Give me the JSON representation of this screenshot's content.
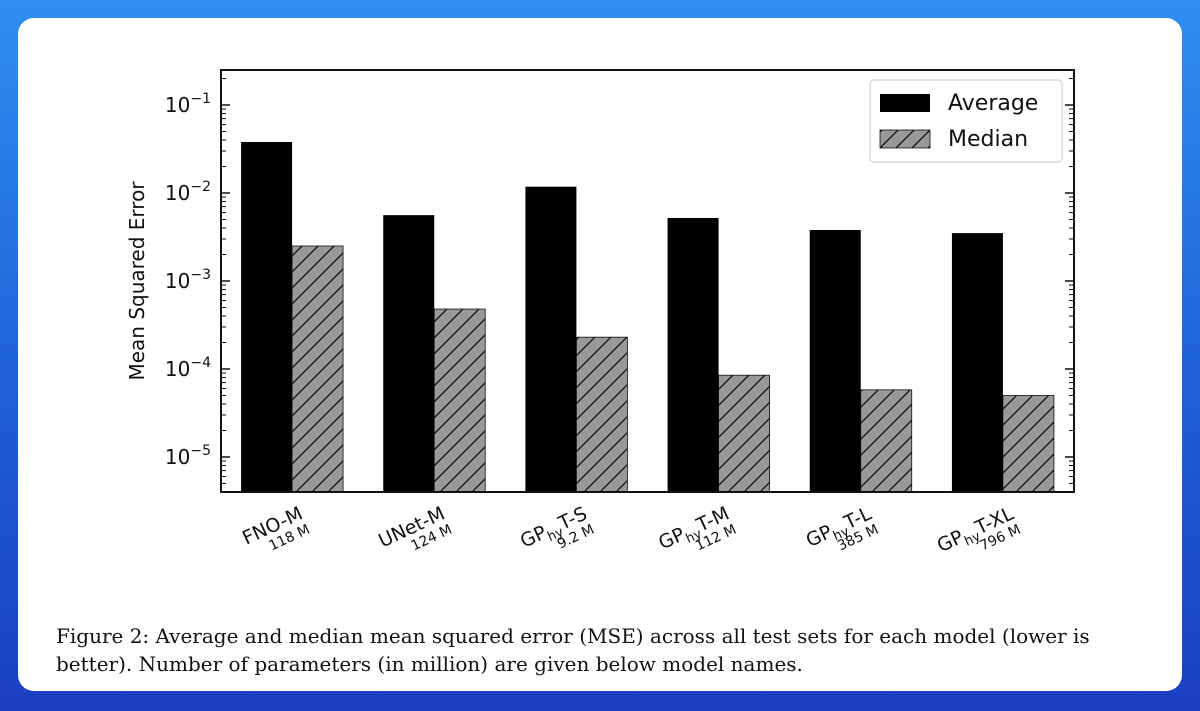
{
  "caption": "Figure 2: Average and median mean squared error (MSE) across all test sets for each model (lower is better). Number of parameters (in million) are given below model names.",
  "colors": {
    "average": "#000000",
    "median": "#999999",
    "hatch": "#111111"
  },
  "chart_data": {
    "type": "bar",
    "yscale": "log",
    "ylabel": "Mean Squared Error",
    "ylim": [
      4e-06,
      0.25
    ],
    "yticks": [
      {
        "value": 0.1,
        "base": "10",
        "exp": "−1"
      },
      {
        "value": 0.01,
        "base": "10",
        "exp": "−2"
      },
      {
        "value": 0.001,
        "base": "10",
        "exp": "−3"
      },
      {
        "value": 0.0001,
        "base": "10",
        "exp": "−4"
      },
      {
        "value": 1e-05,
        "base": "10",
        "exp": "−5"
      }
    ],
    "categories": [
      {
        "name": "FNO-M",
        "pre": "FNO-M",
        "sub": "",
        "post": "",
        "params": "118 M"
      },
      {
        "name": "UNet-M",
        "pre": "UNet-M",
        "sub": "",
        "post": "",
        "params": "124 M"
      },
      {
        "name": "GPhyT-S",
        "pre": "GP",
        "sub": "hy",
        "post": "T-S",
        "params": "9.2 M"
      },
      {
        "name": "GPhyT-M",
        "pre": "GP",
        "sub": "hy",
        "post": "T-M",
        "params": "112 M"
      },
      {
        "name": "GPhyT-L",
        "pre": "GP",
        "sub": "hy",
        "post": "T-L",
        "params": "385 M"
      },
      {
        "name": "GPhyT-XL",
        "pre": "GP",
        "sub": "hy",
        "post": "T-XL",
        "params": "796 M"
      }
    ],
    "series": [
      {
        "name": "Average",
        "values": [
          0.038,
          0.0056,
          0.0118,
          0.0052,
          0.0038,
          0.0035
        ]
      },
      {
        "name": "Median",
        "values": [
          0.0025,
          0.00048,
          0.00023,
          8.5e-05,
          5.8e-05,
          5e-05
        ]
      }
    ],
    "legend": {
      "position": "top-right"
    },
    "grid": false
  }
}
